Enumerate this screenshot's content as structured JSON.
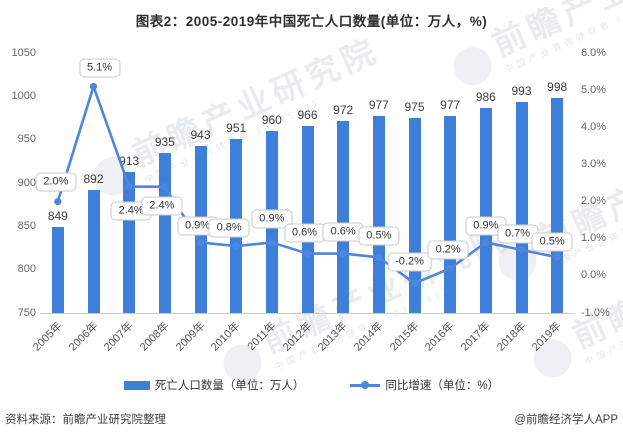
{
  "title": "图表2：2005-2019年中国死亡人口数量(单位：万人，%)",
  "watermark": {
    "main": "前瞻产业研究院",
    "sub": "中国产业咨询领导者（839599）"
  },
  "chart_data": {
    "type": "bar",
    "categories": [
      "2005年",
      "2006年",
      "2007年",
      "2008年",
      "2009年",
      "2010年",
      "2011年",
      "2012年",
      "2013年",
      "2014年",
      "2015年",
      "2016年",
      "2017年",
      "2018年",
      "2019年"
    ],
    "series": [
      {
        "name": "死亡人口数量（单位：万人）",
        "type": "bar",
        "axis": "left",
        "color": "#3E7FD9",
        "values": [
          849,
          892,
          913,
          935,
          943,
          951,
          960,
          966,
          972,
          977,
          975,
          977,
          986,
          993,
          998
        ]
      },
      {
        "name": "同比增速（单位：%）",
        "type": "line",
        "axis": "right",
        "color": "#4E86DB",
        "values": [
          2.0,
          5.1,
          2.4,
          2.4,
          0.9,
          0.8,
          0.9,
          0.6,
          0.6,
          0.5,
          -0.2,
          0.2,
          0.9,
          0.7,
          0.5
        ],
        "labels": [
          "2.0%",
          "5.1%",
          "2.4%",
          "2.4%",
          "0.9%",
          "0.8%",
          "0.9%",
          "0.6%",
          "0.6%",
          "0.5%",
          "-0.2%",
          "0.2%",
          "0.9%",
          "0.7%",
          "0.5%"
        ]
      }
    ],
    "left_axis": {
      "min": 750,
      "max": 1050,
      "ticks": [
        "1050",
        "1000",
        "950",
        "900",
        "850",
        "800",
        "750"
      ]
    },
    "right_axis": {
      "min": -1.0,
      "max": 6.0,
      "ticks": [
        "6.0%",
        "5.0%",
        "4.0%",
        "3.0%",
        "2.0%",
        "1.0%",
        "0.0%",
        "-1.0%"
      ]
    },
    "grid": false,
    "legend_position": "bottom"
  },
  "legend": {
    "bar_label": "死亡人口数量（单位：万人）",
    "line_label": "同比增速（单位：%）"
  },
  "footer": {
    "source": "资料来源：前瞻产业研究院整理",
    "credit": "@前瞻经济学人APP"
  }
}
